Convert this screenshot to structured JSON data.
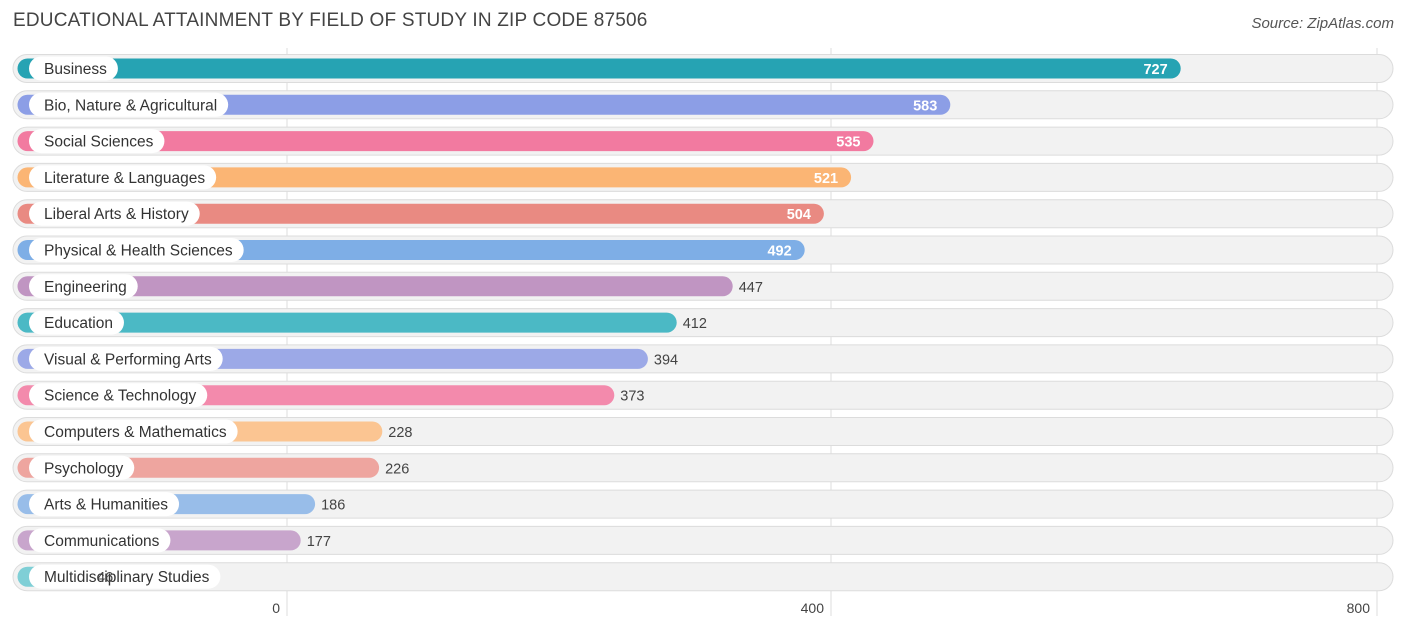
{
  "header": {
    "title": "EDUCATIONAL ATTAINMENT BY FIELD OF STUDY IN ZIP CODE 87506",
    "source": "Source: ZipAtlas.com"
  },
  "chart_data": {
    "type": "bar",
    "orientation": "horizontal",
    "title": "EDUCATIONAL ATTAINMENT BY FIELD OF STUDY IN ZIP CODE 87506",
    "xlabel": "",
    "ylabel": "",
    "xlim": [
      0,
      800
    ],
    "xticks": [
      0,
      400,
      800
    ],
    "xtick_labels": [
      "0",
      "400",
      "800"
    ],
    "grid": true,
    "categories": [
      "Business",
      "Bio, Nature & Agricultural",
      "Social Sciences",
      "Literature & Languages",
      "Liberal Arts & History",
      "Physical & Health Sciences",
      "Engineering",
      "Education",
      "Visual & Performing Arts",
      "Science & Technology",
      "Computers & Mathematics",
      "Psychology",
      "Arts & Humanities",
      "Communications",
      "Multidisciplinary Studies"
    ],
    "values": [
      727,
      583,
      535,
      521,
      504,
      492,
      447,
      412,
      394,
      373,
      228,
      226,
      186,
      177,
      46
    ],
    "value_labels": [
      "727",
      "583",
      "535",
      "521",
      "504",
      "492",
      "447",
      "412",
      "394",
      "373",
      "228",
      "226",
      "186",
      "177",
      "46"
    ],
    "colors": [
      "#26a3b3",
      "#8c9ee6",
      "#f27aa0",
      "#fbb574",
      "#e98a82",
      "#7eaee6",
      "#c095c2",
      "#4bb9c5",
      "#9ca9e7",
      "#f38aac",
      "#fbc592",
      "#eea59f",
      "#98bde9",
      "#c8a5cc",
      "#7fcfd6"
    ]
  }
}
